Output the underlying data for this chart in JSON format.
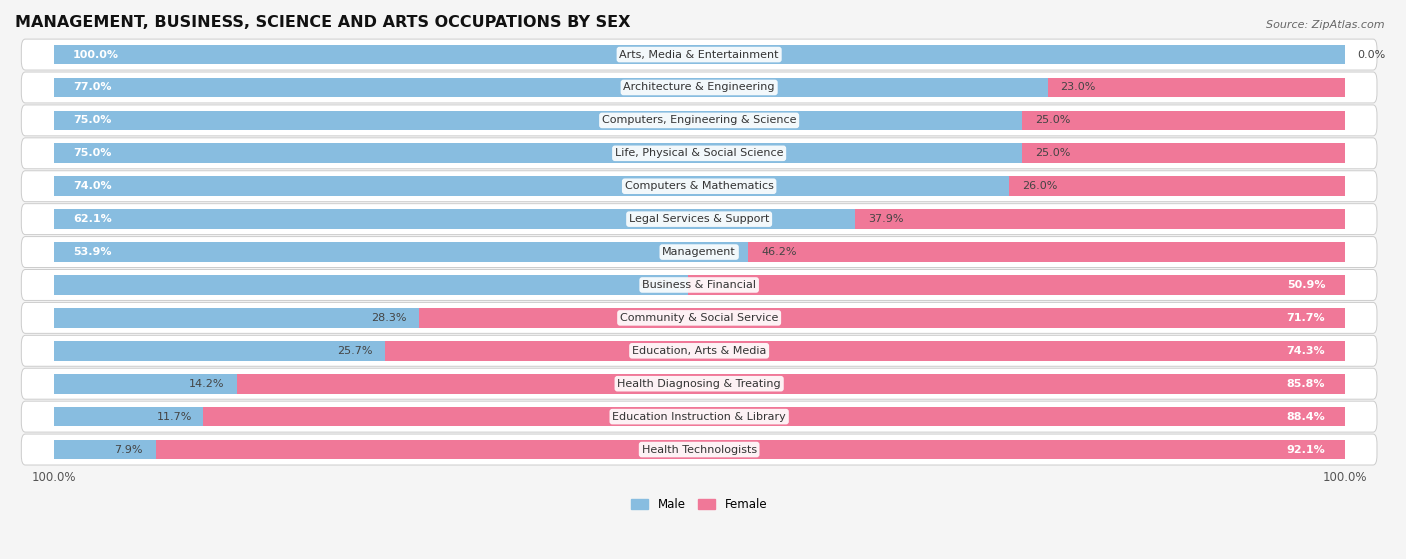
{
  "title": "MANAGEMENT, BUSINESS, SCIENCE AND ARTS OCCUPATIONS BY SEX",
  "source": "Source: ZipAtlas.com",
  "categories": [
    "Arts, Media & Entertainment",
    "Architecture & Engineering",
    "Computers, Engineering & Science",
    "Life, Physical & Social Science",
    "Computers & Mathematics",
    "Legal Services & Support",
    "Management",
    "Business & Financial",
    "Community & Social Service",
    "Education, Arts & Media",
    "Health Diagnosing & Treating",
    "Education Instruction & Library",
    "Health Technologists"
  ],
  "male_pct": [
    100.0,
    77.0,
    75.0,
    75.0,
    74.0,
    62.1,
    53.9,
    49.1,
    28.3,
    25.7,
    14.2,
    11.7,
    7.9
  ],
  "female_pct": [
    0.0,
    23.0,
    25.0,
    25.0,
    26.0,
    37.9,
    46.2,
    50.9,
    71.7,
    74.3,
    85.8,
    88.4,
    92.1
  ],
  "male_color": "#88bde0",
  "female_color": "#f07898",
  "row_color_even": "#f0f0f0",
  "row_color_odd": "#fafafa",
  "row_border_color": "#cccccc",
  "bg_color": "#f5f5f5",
  "bar_height": 0.6,
  "title_fontsize": 11.5,
  "label_fontsize": 8.0,
  "tick_fontsize": 8.5,
  "source_fontsize": 8.0
}
